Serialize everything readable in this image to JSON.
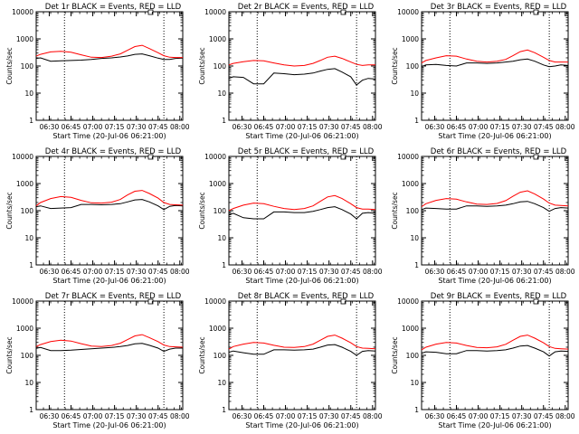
{
  "common": {
    "ylabel": "Counts/sec",
    "xlabel": "Start Time (20-Jul-06 06:21:00)",
    "x_tick_labels": [
      "06:30",
      "06:45",
      "07:00",
      "07:15",
      "07:30",
      "07:45",
      "08:00"
    ],
    "x_tick_minutes": [
      9,
      24,
      39,
      54,
      69,
      84,
      99
    ],
    "y_tick_labels": [
      "1",
      "10",
      "100",
      "1000",
      "10000"
    ],
    "y_log": true,
    "ylim": [
      1,
      10000
    ],
    "xlim_minutes": [
      0,
      101
    ],
    "dotted_vlines_minutes": [
      19.5,
      88
    ],
    "series_colors": {
      "events": "#000000",
      "lld": "#ff0000"
    }
  },
  "chart_data": [
    {
      "type": "line",
      "title": "Det 1r BLACK = Events, RED = LLD",
      "x_minutes": [
        0,
        3,
        10,
        17,
        24,
        31,
        38,
        45,
        52,
        58,
        63,
        68,
        73,
        78,
        84,
        88,
        92,
        96,
        101
      ],
      "series": [
        {
          "key": "events",
          "values": [
            190,
            200,
            150,
            155,
            160,
            165,
            175,
            190,
            200,
            215,
            235,
            270,
            280,
            240,
            195,
            175,
            175,
            190,
            195
          ]
        },
        {
          "key": "lld",
          "values": [
            230,
            270,
            330,
            350,
            320,
            260,
            210,
            205,
            230,
            280,
            380,
            520,
            580,
            440,
            310,
            240,
            210,
            205,
            205
          ]
        }
      ]
    },
    {
      "type": "line",
      "title": "Det 2r BLACK = Events, RED = LLD",
      "x_minutes": [
        0,
        3,
        10,
        17,
        24,
        31,
        38,
        45,
        52,
        58,
        63,
        68,
        73,
        78,
        84,
        88,
        92,
        96,
        101
      ],
      "series": [
        {
          "key": "events",
          "values": [
            35,
            40,
            38,
            22,
            22,
            55,
            52,
            48,
            50,
            55,
            65,
            75,
            80,
            60,
            40,
            20,
            30,
            35,
            33
          ]
        },
        {
          "key": "lld",
          "values": [
            110,
            125,
            145,
            160,
            155,
            130,
            110,
            100,
            105,
            125,
            160,
            210,
            230,
            190,
            140,
            115,
            105,
            110,
            110
          ]
        }
      ]
    },
    {
      "type": "line",
      "title": "Det 3r BLACK = Events, RED = LLD",
      "x_minutes": [
        0,
        3,
        10,
        17,
        24,
        31,
        38,
        45,
        52,
        58,
        63,
        68,
        73,
        78,
        84,
        88,
        92,
        96,
        101
      ],
      "series": [
        {
          "key": "events",
          "values": [
            95,
            110,
            115,
            105,
            100,
            130,
            130,
            125,
            130,
            140,
            150,
            170,
            180,
            150,
            110,
            95,
            100,
            110,
            105
          ]
        },
        {
          "key": "lld",
          "values": [
            130,
            160,
            200,
            240,
            230,
            180,
            150,
            140,
            150,
            175,
            240,
            340,
            390,
            310,
            210,
            160,
            140,
            140,
            140
          ]
        }
      ]
    },
    {
      "type": "line",
      "title": "Det 4r BLACK = Events, RED = LLD",
      "x_minutes": [
        0,
        3,
        10,
        17,
        24,
        31,
        38,
        45,
        52,
        58,
        63,
        68,
        73,
        78,
        84,
        88,
        92,
        96,
        101
      ],
      "series": [
        {
          "key": "events",
          "values": [
            140,
            150,
            120,
            125,
            130,
            170,
            170,
            165,
            170,
            180,
            210,
            250,
            260,
            210,
            150,
            110,
            145,
            155,
            150
          ]
        },
        {
          "key": "lld",
          "values": [
            150,
            200,
            280,
            330,
            310,
            240,
            195,
            190,
            205,
            260,
            380,
            520,
            560,
            430,
            290,
            200,
            170,
            165,
            160
          ]
        }
      ]
    },
    {
      "type": "line",
      "title": "Det 5r BLACK = Events, RED = LLD",
      "x_minutes": [
        0,
        3,
        10,
        17,
        24,
        31,
        38,
        45,
        52,
        58,
        63,
        68,
        73,
        78,
        84,
        88,
        92,
        96,
        101
      ],
      "series": [
        {
          "key": "events",
          "values": [
            70,
            80,
            55,
            50,
            50,
            90,
            90,
            85,
            85,
            95,
            110,
            130,
            140,
            110,
            75,
            50,
            80,
            85,
            80
          ]
        },
        {
          "key": "lld",
          "values": [
            100,
            120,
            160,
            190,
            180,
            145,
            120,
            110,
            120,
            150,
            220,
            320,
            360,
            280,
            180,
            130,
            115,
            115,
            110
          ]
        }
      ]
    },
    {
      "type": "line",
      "title": "Det 6r BLACK = Events, RED = LLD",
      "x_minutes": [
        0,
        3,
        10,
        17,
        24,
        31,
        38,
        45,
        52,
        58,
        63,
        68,
        73,
        78,
        84,
        88,
        92,
        96,
        101
      ],
      "series": [
        {
          "key": "events",
          "values": [
            110,
            125,
            120,
            115,
            115,
            150,
            150,
            145,
            150,
            160,
            180,
            210,
            220,
            180,
            130,
            95,
            120,
            130,
            125
          ]
        },
        {
          "key": "lld",
          "values": [
            140,
            180,
            240,
            280,
            265,
            210,
            175,
            170,
            185,
            235,
            340,
            480,
            540,
            410,
            270,
            190,
            160,
            155,
            150
          ]
        }
      ]
    },
    {
      "type": "line",
      "title": "Det 7r BLACK = Events, RED = LLD",
      "x_minutes": [
        0,
        3,
        10,
        17,
        24,
        31,
        38,
        45,
        52,
        58,
        63,
        68,
        73,
        78,
        84,
        88,
        92,
        96,
        101
      ],
      "series": [
        {
          "key": "events",
          "values": [
            180,
            195,
            150,
            150,
            155,
            165,
            175,
            185,
            195,
            210,
            230,
            265,
            275,
            235,
            185,
            140,
            170,
            185,
            185
          ]
        },
        {
          "key": "lld",
          "values": [
            210,
            250,
            320,
            360,
            335,
            270,
            220,
            210,
            230,
            280,
            380,
            520,
            580,
            450,
            320,
            240,
            210,
            205,
            200
          ]
        }
      ]
    },
    {
      "type": "line",
      "title": "Det 8r BLACK = Events, RED = LLD",
      "x_minutes": [
        0,
        3,
        10,
        17,
        24,
        31,
        38,
        45,
        52,
        58,
        63,
        68,
        73,
        78,
        84,
        88,
        92,
        96,
        101
      ],
      "series": [
        {
          "key": "events",
          "values": [
            130,
            145,
            125,
            110,
            110,
            160,
            160,
            155,
            160,
            170,
            200,
            240,
            250,
            200,
            140,
            100,
            140,
            150,
            145
          ]
        },
        {
          "key": "lld",
          "values": [
            170,
            210,
            260,
            300,
            285,
            235,
            200,
            195,
            210,
            260,
            360,
            500,
            560,
            430,
            290,
            210,
            185,
            180,
            175
          ]
        }
      ]
    },
    {
      "type": "line",
      "title": "Det 9r BLACK = Events, RED = LLD",
      "x_minutes": [
        0,
        3,
        10,
        17,
        24,
        31,
        38,
        45,
        52,
        58,
        63,
        68,
        73,
        78,
        84,
        88,
        92,
        96,
        101
      ],
      "series": [
        {
          "key": "events",
          "values": [
            120,
            135,
            130,
            115,
            115,
            150,
            150,
            145,
            150,
            160,
            185,
            220,
            230,
            185,
            135,
            95,
            135,
            145,
            140
          ]
        },
        {
          "key": "lld",
          "values": [
            160,
            200,
            260,
            300,
            285,
            230,
            195,
            190,
            205,
            255,
            360,
            500,
            560,
            430,
            290,
            210,
            180,
            175,
            170
          ]
        }
      ]
    }
  ]
}
